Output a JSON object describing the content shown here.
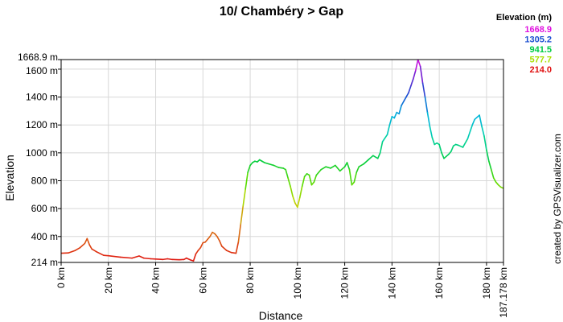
{
  "chart_data": {
    "type": "line",
    "title": "10/ Chambéry > Gap",
    "xlabel": "Distance",
    "ylabel": "Elevation",
    "credit": "created by GPSVisualizer.com",
    "x_unit": "km",
    "y_unit": "m",
    "xlim": [
      0,
      187.178
    ],
    "ylim": [
      214.0,
      1668.9
    ],
    "x_ticks": [
      "0 km",
      "20 km",
      "40 km",
      "60 km",
      "80 km",
      "100 km",
      "120 km",
      "140 km",
      "160 km",
      "180 km",
      "187.178 km"
    ],
    "x_tick_values": [
      0,
      20,
      40,
      60,
      80,
      100,
      120,
      140,
      160,
      180,
      187.178
    ],
    "y_ticks": [
      "214 m",
      "400 m",
      "600 m",
      "800 m",
      "1000 m",
      "1200 m",
      "1400 m",
      "1600 m",
      "1668.9 m"
    ],
    "y_tick_values": [
      214,
      400,
      600,
      800,
      1000,
      1200,
      1400,
      1600,
      1668.9
    ],
    "grid": true,
    "legend": {
      "title": "Elevation (m)",
      "placement": "top-right",
      "entries": [
        {
          "label": "1668.9",
          "color": "#e010e0"
        },
        {
          "label": "1305.2",
          "color": "#1a4fd0"
        },
        {
          "label": "941.5",
          "color": "#00cc44"
        },
        {
          "label": "577.7",
          "color": "#a8e000"
        },
        {
          "label": "214.0",
          "color": "#e01010"
        }
      ]
    },
    "series": [
      {
        "x": [
          0,
          3,
          6,
          8,
          10,
          11,
          12,
          13,
          15,
          18,
          20,
          25,
          30,
          33,
          35,
          38,
          40,
          43,
          45,
          47,
          50,
          52,
          53,
          55,
          56,
          57,
          58,
          59,
          60,
          61,
          62,
          63,
          64,
          65,
          66,
          67,
          68,
          70,
          72,
          74,
          75,
          76,
          77,
          78,
          79,
          80,
          81,
          82,
          83,
          84,
          85,
          86,
          88,
          90,
          92,
          94,
          95,
          96,
          97,
          98,
          99,
          100,
          101,
          102,
          103,
          104,
          105,
          106,
          107,
          108,
          110,
          112,
          114,
          116,
          118,
          120,
          121,
          122,
          123,
          124,
          125,
          126,
          128,
          130,
          132,
          134,
          135,
          136,
          138,
          139,
          140,
          141,
          142,
          143,
          144,
          145,
          146,
          147,
          148,
          149,
          150,
          151,
          152,
          153,
          154,
          155,
          156,
          157,
          158,
          159,
          160,
          161,
          162,
          163,
          164,
          165,
          166,
          167,
          168,
          170,
          172,
          174,
          175,
          176,
          177,
          178,
          179,
          180,
          181,
          182,
          183,
          184,
          185,
          186,
          187.178
        ],
        "y": [
          280,
          282,
          300,
          320,
          350,
          385,
          340,
          310,
          290,
          265,
          262,
          252,
          245,
          260,
          245,
          240,
          238,
          235,
          240,
          235,
          233,
          235,
          245,
          230,
          225,
          275,
          300,
          320,
          355,
          360,
          380,
          400,
          430,
          420,
          400,
          370,
          330,
          300,
          285,
          280,
          360,
          490,
          620,
          740,
          860,
          910,
          930,
          940,
          935,
          950,
          940,
          930,
          920,
          910,
          895,
          890,
          880,
          820,
          760,
          690,
          640,
          610,
          680,
          760,
          830,
          850,
          840,
          770,
          790,
          840,
          880,
          900,
          890,
          910,
          870,
          900,
          930,
          880,
          770,
          790,
          860,
          900,
          920,
          950,
          980,
          960,
          1000,
          1080,
          1130,
          1200,
          1260,
          1250,
          1290,
          1280,
          1340,
          1370,
          1400,
          1430,
          1480,
          1530,
          1590,
          1668.9,
          1620,
          1500,
          1400,
          1290,
          1190,
          1110,
          1060,
          1070,
          1060,
          1000,
          960,
          975,
          990,
          1010,
          1050,
          1060,
          1055,
          1040,
          1100,
          1200,
          1240,
          1255,
          1270,
          1190,
          1120,
          1020,
          940,
          880,
          820,
          790,
          770,
          755,
          745
        ]
      }
    ]
  }
}
